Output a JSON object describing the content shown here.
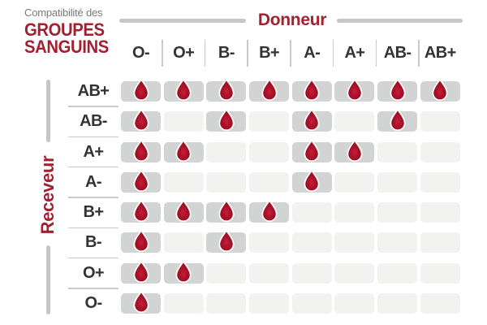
{
  "title": {
    "small": "Compatibilité des",
    "line1": "GROUPES",
    "line2": "SANGUINS"
  },
  "axes": {
    "donor": "Donneur",
    "receiver": "Receveur"
  },
  "colors": {
    "accent_red": "#a32031",
    "drop_red_light": "#c51d3b",
    "drop_red": "#a81228",
    "drop_red_dark": "#8c0d1f",
    "label_dark": "#333333",
    "subtitle_gray": "#7b7b7b",
    "axis_line_gray": "#c5c7c6",
    "divider_gray": "#c9cbca",
    "cell_filled_bg": "#d2d4d3",
    "cell_empty_bg": "#f2f2f1"
  },
  "chart_data": {
    "type": "heatmap",
    "title": "Compatibilité des groupes sanguins",
    "x_axis_label": "Donneur",
    "y_axis_label": "Receveur",
    "categories_x": [
      "O-",
      "O+",
      "B-",
      "B+",
      "A-",
      "A+",
      "AB-",
      "AB+"
    ],
    "categories_y": [
      "AB+",
      "AB-",
      "A+",
      "A-",
      "B+",
      "B-",
      "O+",
      "O-"
    ],
    "values": [
      [
        1,
        1,
        1,
        1,
        1,
        1,
        1,
        1
      ],
      [
        1,
        0,
        1,
        0,
        1,
        0,
        1,
        0
      ],
      [
        1,
        1,
        0,
        0,
        1,
        1,
        0,
        0
      ],
      [
        1,
        0,
        0,
        0,
        1,
        0,
        0,
        0
      ],
      [
        1,
        1,
        1,
        1,
        0,
        0,
        0,
        0
      ],
      [
        1,
        0,
        1,
        0,
        0,
        0,
        0,
        0
      ],
      [
        1,
        1,
        0,
        0,
        0,
        0,
        0,
        0
      ],
      [
        1,
        0,
        0,
        0,
        0,
        0,
        0,
        0
      ]
    ],
    "value_meaning": {
      "1": "compatible — blood drop icon shown",
      "0": "not compatible — empty cell"
    },
    "cell_icon": "blood-drop-icon",
    "legend_position": "none",
    "grid": "rounded-cell matrix"
  }
}
